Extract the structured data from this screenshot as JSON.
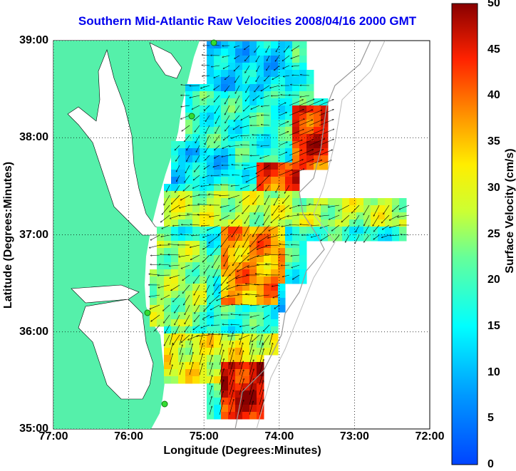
{
  "title": "Southern Mid-Atlantic Raw Velocities 2008/04/16 2000 GMT",
  "map": {
    "xlabel": "Longitude (Degrees:Minutes)",
    "ylabel": "Latitude (Degrees:Minutes)",
    "lon_ticks": [
      "77:00",
      "76:00",
      "75:00",
      "74:00",
      "73:00",
      "72:00"
    ],
    "lat_ticks": [
      "39:00",
      "38:00",
      "37:00",
      "36:00",
      "35:00"
    ],
    "lon_range": [
      -77,
      -72
    ],
    "lat_range": [
      35,
      39
    ],
    "grid": "dotted",
    "land_color": "#55f0aa",
    "bathymetry_color": "#999999",
    "station_color": "#33dd33"
  },
  "colorbar": {
    "label": "Surface Velocity (cm/s)",
    "ticks": [
      "0",
      "5",
      "10",
      "15",
      "20",
      "25",
      "30",
      "35",
      "40",
      "45",
      "50"
    ],
    "range": [
      0,
      50
    ],
    "colormap": "jet"
  }
}
